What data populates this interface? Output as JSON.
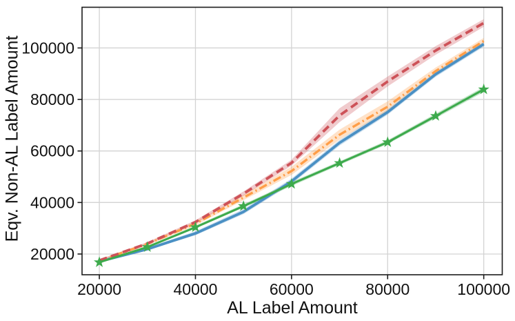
{
  "figure_title": "",
  "chart_data": {
    "type": "line",
    "title": "",
    "xlabel": "AL Label Amount",
    "ylabel": "Eqv. Non-AL Label Amount",
    "xlim": [
      16400,
      103850
    ],
    "ylim": [
      11950,
      115800
    ],
    "x_ticks": [
      20000,
      40000,
      60000,
      80000,
      100000
    ],
    "y_ticks": [
      20000,
      40000,
      60000,
      80000,
      100000
    ],
    "grid": true,
    "legend": "none",
    "frame": "full-box",
    "grid_color": "#d3d3d3",
    "spine_color": "#1a1a1a",
    "text_color": "#111111",
    "x": [
      20000,
      30000,
      40000,
      50000,
      60000,
      70000,
      80000,
      90000,
      100000
    ],
    "series": [
      {
        "name": "blue-solid",
        "color": "#4a90c4",
        "line_style": "solid",
        "marker": "none",
        "line_width": 3.8,
        "values": [
          17100,
          21900,
          28000,
          36400,
          48200,
          63200,
          75100,
          89800,
          101500
        ],
        "band_lo": [
          16800,
          21500,
          27300,
          35500,
          47200,
          62100,
          74100,
          88800,
          100500
        ],
        "band_hi": [
          17400,
          22500,
          28800,
          37400,
          49300,
          64300,
          76200,
          90800,
          102500
        ]
      },
      {
        "name": "orange-dash-dot",
        "color": "#ff9e48",
        "line_style": "dashdot",
        "marker": "none",
        "line_width": 3.4,
        "values": [
          17400,
          23900,
          31800,
          41900,
          52200,
          66300,
          77200,
          91000,
          102700
        ],
        "band_lo": [
          17000,
          23400,
          31100,
          40900,
          50700,
          64400,
          75500,
          89700,
          101500
        ],
        "band_hi": [
          17800,
          24400,
          32600,
          43000,
          53900,
          68300,
          79300,
          92400,
          103900
        ]
      },
      {
        "name": "red-dashed",
        "color": "#cd5258",
        "line_style": "dashed",
        "marker": "none",
        "line_width": 3.8,
        "values": [
          17500,
          24100,
          32400,
          43400,
          55400,
          73800,
          87000,
          99000,
          109700
        ],
        "band_lo": [
          17100,
          23600,
          31800,
          42600,
          54300,
          71200,
          85100,
          97400,
          108200
        ],
        "band_hi": [
          17900,
          24600,
          33100,
          44300,
          56600,
          76600,
          88900,
          100700,
          111200
        ]
      },
      {
        "name": "green-star",
        "color": "#3daa4c",
        "line_style": "solid",
        "marker": "star",
        "line_width": 3.0,
        "values": [
          16800,
          22700,
          30400,
          38600,
          47200,
          55300,
          63400,
          73600,
          83900
        ],
        "band_lo": [
          16500,
          22300,
          29900,
          38000,
          46400,
          54600,
          62700,
          72700,
          82900
        ],
        "band_hi": [
          17100,
          23200,
          31000,
          39300,
          48000,
          56000,
          64200,
          74500,
          84900
        ]
      }
    ],
    "band_opacity": 0.3
  }
}
